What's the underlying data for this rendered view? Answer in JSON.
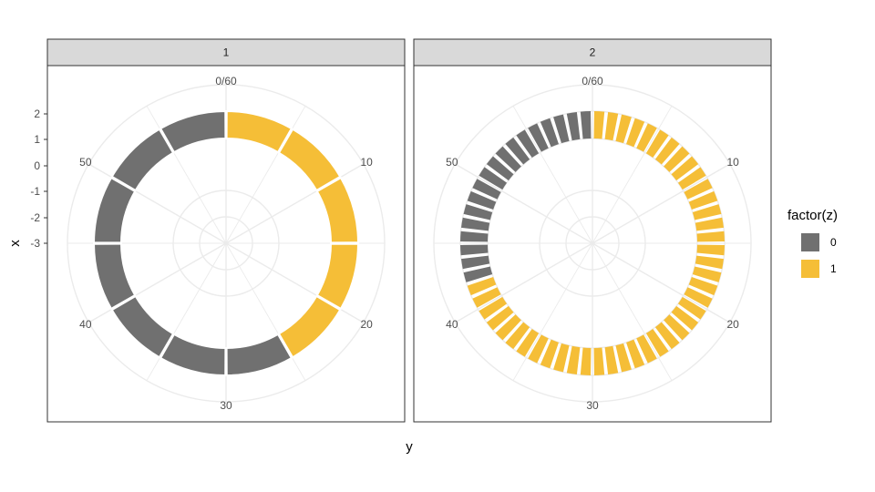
{
  "chart_data": {
    "type": "bar",
    "coord": "polar",
    "xlabel": "y",
    "ylabel": "x",
    "theta_ticks": [
      "0/60",
      "10",
      "20",
      "30",
      "40",
      "50"
    ],
    "theta_range": [
      0,
      60
    ],
    "r_ticks": [
      "2",
      "1",
      "0",
      "-1",
      "-2",
      "-3"
    ],
    "grid": true,
    "legend": {
      "title": "factor(z)",
      "position": "right",
      "items": [
        {
          "label": "0",
          "color": "#707070"
        },
        {
          "label": "1",
          "color": "#F5BE37"
        }
      ]
    },
    "facets": [
      {
        "strip": "1",
        "segments_count": 12,
        "z": [
          1,
          1,
          1,
          1,
          1,
          0,
          0,
          0,
          0,
          0,
          0,
          0
        ]
      },
      {
        "strip": "2",
        "segments_count": 60,
        "z": [
          1,
          1,
          1,
          1,
          1,
          1,
          1,
          1,
          1,
          1,
          1,
          1,
          1,
          1,
          1,
          1,
          1,
          1,
          1,
          1,
          1,
          1,
          1,
          1,
          1,
          1,
          1,
          1,
          1,
          1,
          1,
          1,
          1,
          1,
          1,
          1,
          1,
          1,
          1,
          1,
          1,
          1,
          0,
          0,
          0,
          0,
          0,
          0,
          0,
          0,
          0,
          0,
          0,
          0,
          0,
          0,
          0,
          0,
          0,
          0
        ]
      }
    ]
  }
}
